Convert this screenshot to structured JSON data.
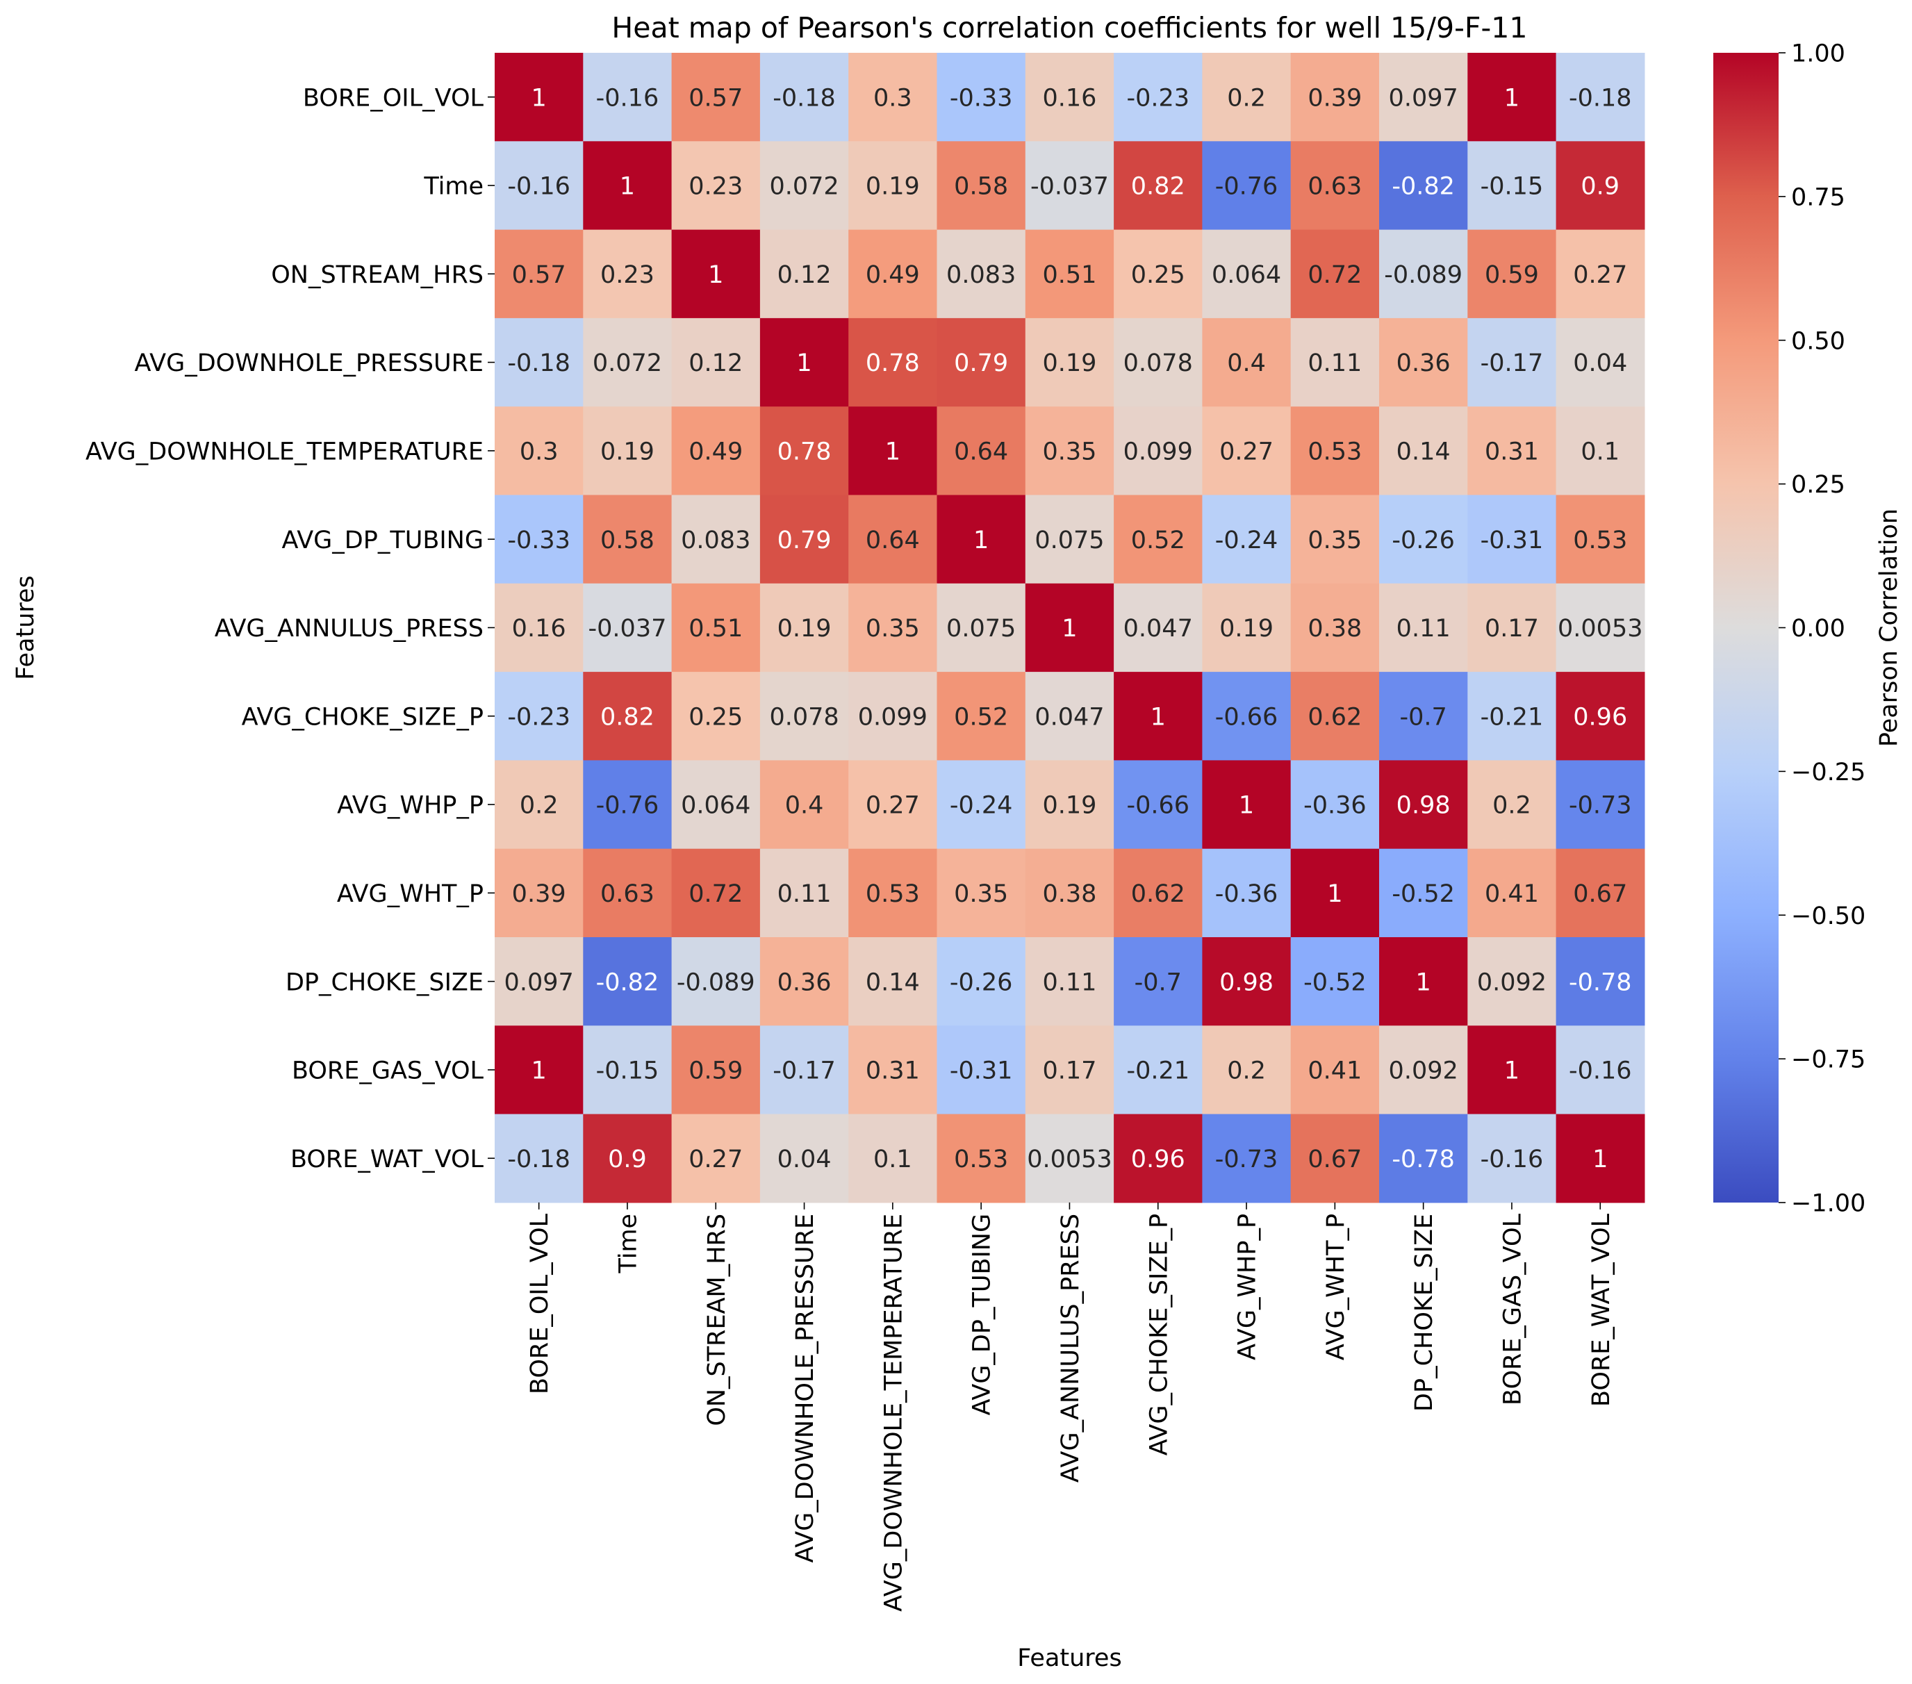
{
  "chart_data": {
    "type": "heatmap",
    "title": "Heat map of Pearson's correlation coefficients for well 15/9-F-11",
    "xlabel": "Features",
    "ylabel": "Features",
    "colorbar_label": "Pearson Correlation",
    "vmin": -1.0,
    "vmax": 1.0,
    "colorbar_ticks": [
      "1.00",
      "0.75",
      "0.50",
      "0.25",
      "0.00",
      "−0.25",
      "−0.50",
      "−0.75",
      "−1.00"
    ],
    "colorbar_tick_values": [
      1.0,
      0.75,
      0.5,
      0.25,
      0.0,
      -0.25,
      -0.5,
      -0.75,
      -1.0
    ],
    "colormap": "coolwarm",
    "features": [
      "BORE_OIL_VOL",
      "Time",
      "ON_STREAM_HRS",
      "AVG_DOWNHOLE_PRESSURE",
      "AVG_DOWNHOLE_TEMPERATURE",
      "AVG_DP_TUBING",
      "AVG_ANNULUS_PRESS",
      "AVG_CHOKE_SIZE_P",
      "AVG_WHP_P",
      "AVG_WHT_P",
      "DP_CHOKE_SIZE",
      "BORE_GAS_VOL",
      "BORE_WAT_VOL"
    ],
    "labels": [
      [
        "1",
        "-0.16",
        "0.57",
        "-0.18",
        "0.3",
        "-0.33",
        "0.16",
        "-0.23",
        "0.2",
        "0.39",
        "0.097",
        "1",
        "-0.18"
      ],
      [
        "-0.16",
        "1",
        "0.23",
        "0.072",
        "0.19",
        "0.58",
        "-0.037",
        "0.82",
        "-0.76",
        "0.63",
        "-0.82",
        "-0.15",
        "0.9"
      ],
      [
        "0.57",
        "0.23",
        "1",
        "0.12",
        "0.49",
        "0.083",
        "0.51",
        "0.25",
        "0.064",
        "0.72",
        "-0.089",
        "0.59",
        "0.27"
      ],
      [
        "-0.18",
        "0.072",
        "0.12",
        "1",
        "0.78",
        "0.79",
        "0.19",
        "0.078",
        "0.4",
        "0.11",
        "0.36",
        "-0.17",
        "0.04"
      ],
      [
        "0.3",
        "0.19",
        "0.49",
        "0.78",
        "1",
        "0.64",
        "0.35",
        "0.099",
        "0.27",
        "0.53",
        "0.14",
        "0.31",
        "0.1"
      ],
      [
        "-0.33",
        "0.58",
        "0.083",
        "0.79",
        "0.64",
        "1",
        "0.075",
        "0.52",
        "-0.24",
        "0.35",
        "-0.26",
        "-0.31",
        "0.53"
      ],
      [
        "0.16",
        "-0.037",
        "0.51",
        "0.19",
        "0.35",
        "0.075",
        "1",
        "0.047",
        "0.19",
        "0.38",
        "0.11",
        "0.17",
        "0.0053"
      ],
      [
        "-0.23",
        "0.82",
        "0.25",
        "0.078",
        "0.099",
        "0.52",
        "0.047",
        "1",
        "-0.66",
        "0.62",
        "-0.7",
        "-0.21",
        "0.96"
      ],
      [
        "0.2",
        "-0.76",
        "0.064",
        "0.4",
        "0.27",
        "-0.24",
        "0.19",
        "-0.66",
        "1",
        "-0.36",
        "0.98",
        "0.2",
        "-0.73"
      ],
      [
        "0.39",
        "0.63",
        "0.72",
        "0.11",
        "0.53",
        "0.35",
        "0.38",
        "0.62",
        "-0.36",
        "1",
        "-0.52",
        "0.41",
        "0.67"
      ],
      [
        "0.097",
        "-0.82",
        "-0.089",
        "0.36",
        "0.14",
        "-0.26",
        "0.11",
        "-0.7",
        "0.98",
        "-0.52",
        "1",
        "0.092",
        "-0.78"
      ],
      [
        "1",
        "-0.15",
        "0.59",
        "-0.17",
        "0.31",
        "-0.31",
        "0.17",
        "-0.21",
        "0.2",
        "0.41",
        "0.092",
        "1",
        "-0.16"
      ],
      [
        "-0.18",
        "0.9",
        "0.27",
        "0.04",
        "0.1",
        "0.53",
        "0.0053",
        "0.96",
        "-0.73",
        "0.67",
        "-0.78",
        "-0.16",
        "1"
      ]
    ]
  }
}
